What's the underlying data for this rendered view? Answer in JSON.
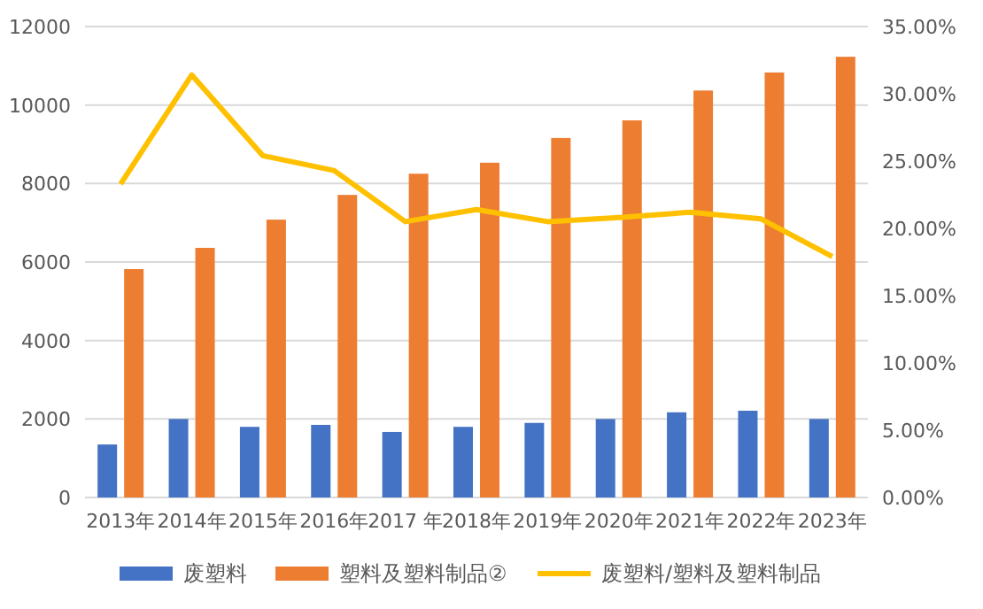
{
  "chart_data": {
    "type": "bar",
    "categories": [
      "2013年",
      "2014年",
      "2015年",
      "2016年",
      "2017 年",
      "2018年",
      "2019年",
      "2020年",
      "2021年",
      "2022年",
      "2023年"
    ],
    "series": [
      {
        "name": "废塑料",
        "color": "#4472c4",
        "values": [
          1350,
          2000,
          1800,
          1850,
          1670,
          1800,
          1900,
          2000,
          2170,
          2210,
          2000
        ]
      },
      {
        "name": "塑料及塑料制品②",
        "color": "#ed7d31",
        "values": [
          5820,
          6360,
          7080,
          7710,
          8250,
          8530,
          9160,
          9610,
          10370,
          10830,
          11230
        ]
      },
      {
        "name": "废塑料/塑料及塑料制品",
        "type": "line",
        "axis": "y2",
        "color": "#ffc000",
        "values": [
          23.3,
          31.4,
          25.4,
          24.3,
          20.5,
          21.4,
          20.5,
          20.8,
          21.2,
          20.7,
          17.9
        ]
      }
    ],
    "ylim": [
      0,
      12000
    ],
    "yticks": [
      0,
      2000,
      4000,
      6000,
      8000,
      10000,
      12000
    ],
    "y2lim": [
      0,
      35
    ],
    "y2ticks": [
      {
        "value": 0,
        "label": "0.00%"
      },
      {
        "value": 5,
        "label": "5.00%"
      },
      {
        "value": 10,
        "label": "10.00%"
      },
      {
        "value": 15,
        "label": "15.00%"
      },
      {
        "value": 20,
        "label": "20.00%"
      },
      {
        "value": 25,
        "label": "25.00%"
      },
      {
        "value": 30,
        "label": "30.00%"
      },
      {
        "value": 35,
        "label": "35.00%"
      }
    ],
    "grid": "y",
    "legend": "bottom",
    "marker": "none",
    "line_style": "solid"
  }
}
